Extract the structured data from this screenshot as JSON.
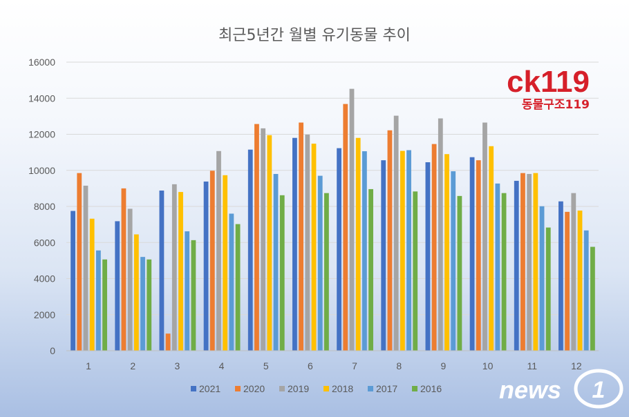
{
  "chart_data": {
    "type": "bar",
    "title": "최근5년간 월별 유기동물 추이",
    "xlabel": "",
    "ylabel": "",
    "ylim": [
      0,
      16000
    ],
    "yticks": [
      "0",
      "2000",
      "4000",
      "6000",
      "8000",
      "10000",
      "12000",
      "14000",
      "16000"
    ],
    "grid": true,
    "legend_position": "bottom",
    "categories": [
      "1",
      "2",
      "3",
      "4",
      "5",
      "6",
      "7",
      "8",
      "9",
      "10",
      "11",
      "12"
    ],
    "series": [
      {
        "name": "2021",
        "color": "#4472c4",
        "values": [
          7750,
          7180,
          8880,
          9380,
          11150,
          11800,
          11230,
          10560,
          10450,
          10730,
          9420,
          8280
        ]
      },
      {
        "name": "2020",
        "color": "#ed7d31",
        "values": [
          9850,
          9000,
          950,
          9980,
          12570,
          12650,
          13680,
          12220,
          11460,
          10560,
          9850,
          7700
        ]
      },
      {
        "name": "2019",
        "color": "#a5a5a5",
        "values": [
          9150,
          7870,
          9230,
          11070,
          12330,
          11980,
          14520,
          13030,
          12880,
          12650,
          9800,
          8740
        ]
      },
      {
        "name": "2018",
        "color": "#ffc000",
        "values": [
          7320,
          6450,
          8800,
          9730,
          11950,
          11480,
          11800,
          11080,
          10900,
          11340,
          9850,
          7770
        ]
      },
      {
        "name": "2017",
        "color": "#5b9bd5",
        "values": [
          5560,
          5200,
          6620,
          7600,
          9800,
          9700,
          11060,
          11120,
          9950,
          9270,
          8010,
          6670
        ]
      },
      {
        "name": "2016",
        "color": "#70ad47",
        "values": [
          5060,
          5060,
          6130,
          7020,
          8620,
          8740,
          8960,
          8830,
          8580,
          8740,
          6830,
          5760
        ]
      }
    ]
  },
  "logo": {
    "mark": "ck119",
    "subtitle": "동물구조119"
  },
  "watermark": {
    "word": "news",
    "number": "1"
  }
}
